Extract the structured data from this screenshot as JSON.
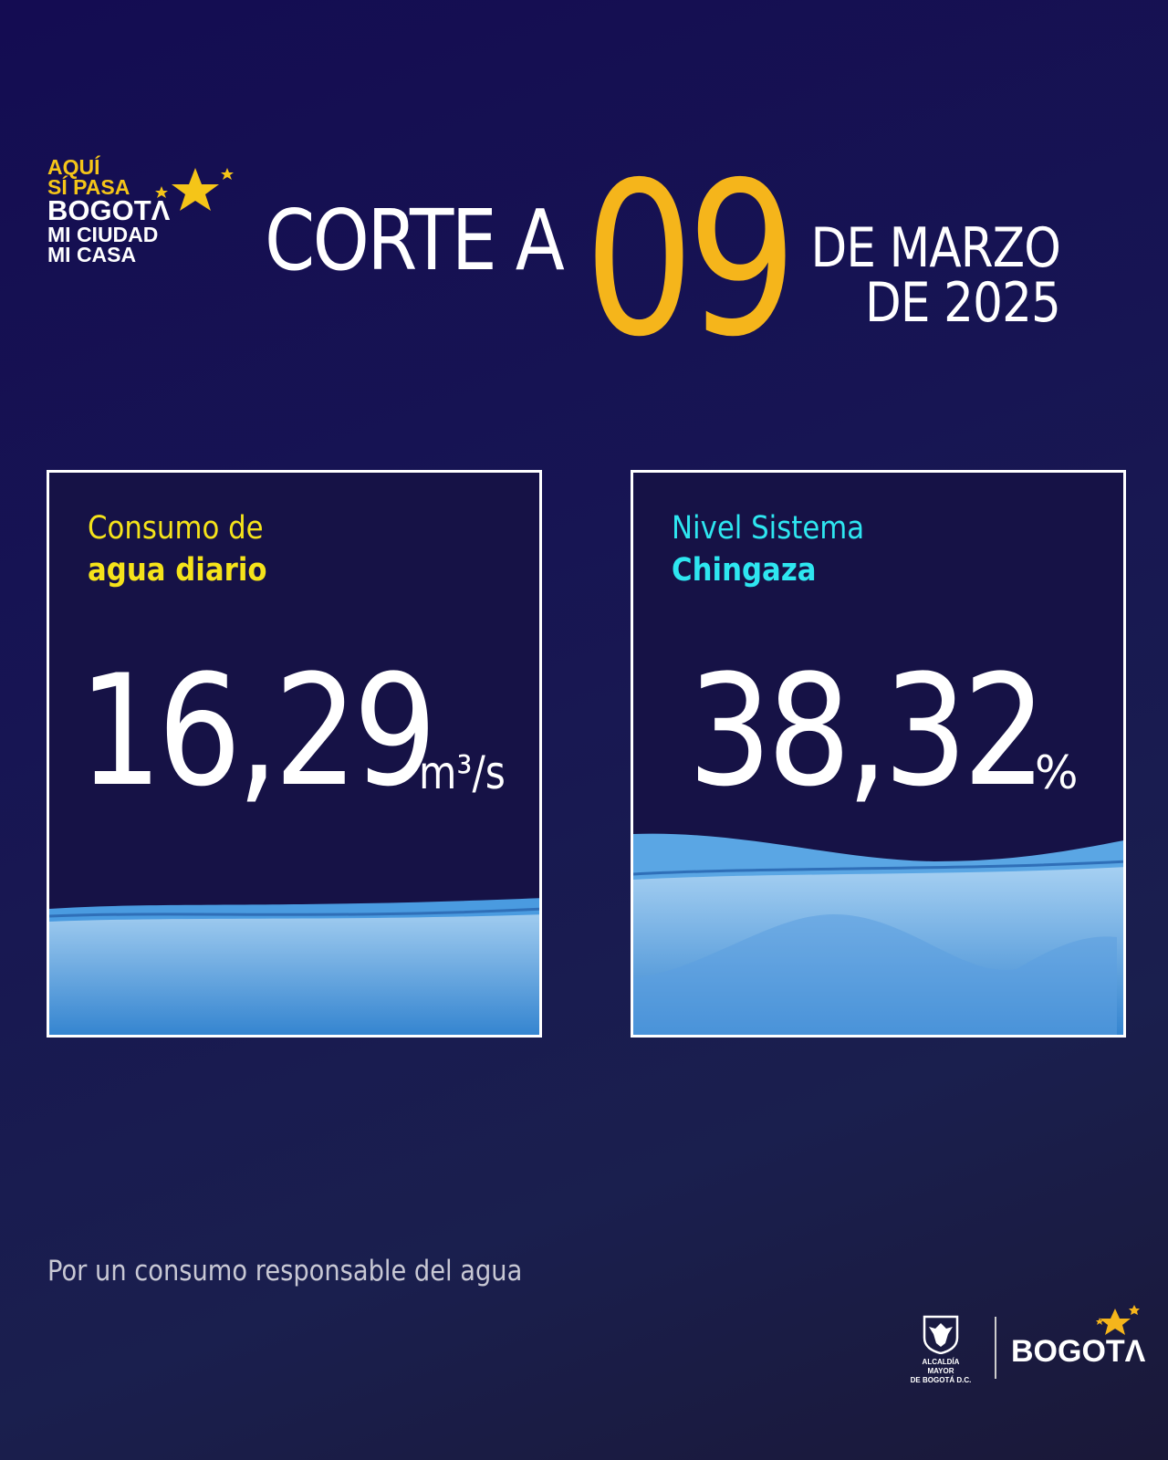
{
  "logo": {
    "line1": "AQUÍ",
    "line2": "SÍ PASA",
    "line3": "BOGOTΛ",
    "line4": "MI CIUDAD",
    "line5": "MI CASA"
  },
  "header": {
    "prefix": "CORTE A",
    "day": "09",
    "month": "DE MARZO",
    "year": "DE 2025"
  },
  "cards": [
    {
      "title_line1": "Consumo de",
      "title_line2": "agua diario",
      "value": "16,29",
      "unit": "m³/s",
      "title_color": "#f5e31a"
    },
    {
      "title_line1": "Nivel Sistema",
      "title_line2": "Chingaza",
      "value": "38,32",
      "unit": "%",
      "title_color": "#2ee6f0",
      "level_percent": 38.32
    }
  ],
  "footer": {
    "slogan": "Por un consumo responsable del agua",
    "alcaldia_line1": "ALCALDÍA MAYOR",
    "alcaldia_line2": "DE BOGOTÁ D.C.",
    "brand": "BOGOTΛ"
  },
  "colors": {
    "accent": "#f5b51b",
    "yellow": "#f5e31a",
    "cyan": "#2ee6f0",
    "water": "#3d8fd6"
  }
}
